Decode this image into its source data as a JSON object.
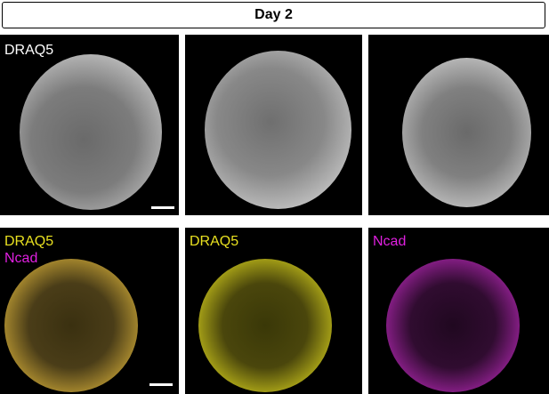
{
  "header": {
    "title": "Day 2"
  },
  "top_row": {
    "label": "DRAQ5",
    "label_color": "#ffffff"
  },
  "bottom_row": {
    "merge_labels": [
      "DRAQ5",
      "Ncad"
    ],
    "draq5_label": "DRAQ5",
    "ncad_label": "Ncad",
    "colors": {
      "draq5": "#e8e020",
      "ncad": "#e020e0"
    }
  }
}
